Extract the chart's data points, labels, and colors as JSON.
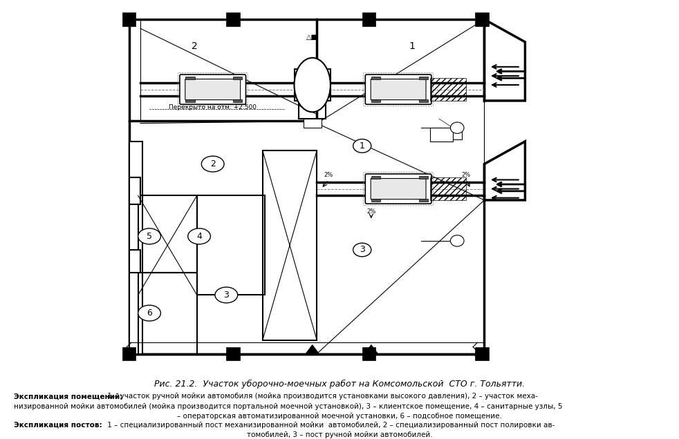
{
  "title": "Рис. 21.2.  Участок уборочно-моечных работ на Комсомольской  СТО г. Тольятти.",
  "caption_bold1": "Экспликация помещений:",
  "caption_text1": " 1 – участок ручной мойки автомобиля (мойка производится установками высокого давления), 2 – участок меха-\nнизированной мойки автомобилей (мойка производится портальной моечной установкой), 3 – клиентское помещение, 4 – санитарные узлы, 5\n– операторская автоматизированной моечной установки, 6 – подсобное помещение.",
  "caption_bold2": "Экспликация постов:",
  "caption_text2": " 1 – специализированный пост механизированной мойки  автомобилей, 2 – специализированный пост полировки ав-\nтомобилей, 3 – пост ручной мойки автомобилей.",
  "bg_color": "#ffffff",
  "line_color": "#000000",
  "light_gray": "#888888",
  "fill_gray": "#d0d0d0"
}
